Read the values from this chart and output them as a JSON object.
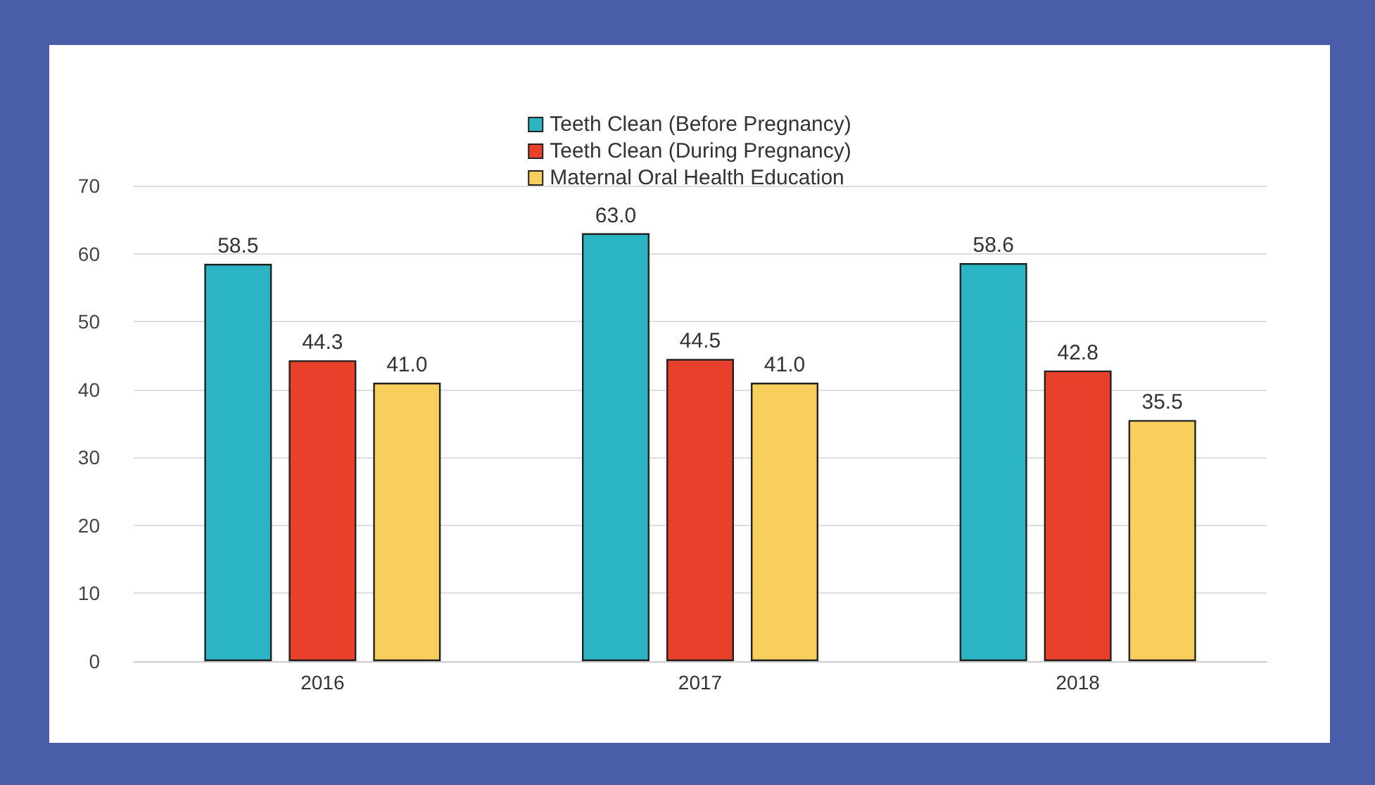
{
  "chart_data": {
    "type": "bar",
    "categories": [
      "2016",
      "2017",
      "2018"
    ],
    "series": [
      {
        "name": "Teeth Clean (Before Pregnancy)",
        "color": "#2bb5c4",
        "values": [
          58.5,
          63.0,
          58.6
        ],
        "value_labels": [
          "58.5",
          "63.0",
          "58.6"
        ]
      },
      {
        "name": "Teeth Clean (During Pregnancy)",
        "color": "#e8402a",
        "values": [
          44.3,
          44.5,
          42.8
        ],
        "value_labels": [
          "44.3",
          "44.5",
          "42.8"
        ]
      },
      {
        "name": "Maternal Oral Health Education",
        "color": "#f8cf5c",
        "values": [
          41.0,
          41.0,
          35.5
        ],
        "value_labels": [
          "41.0",
          "41.0",
          "35.5"
        ]
      }
    ],
    "ylim": [
      0,
      70
    ],
    "yticks": [
      0,
      10,
      20,
      30,
      40,
      50,
      60,
      70
    ],
    "grid": "y",
    "legend": "top"
  }
}
